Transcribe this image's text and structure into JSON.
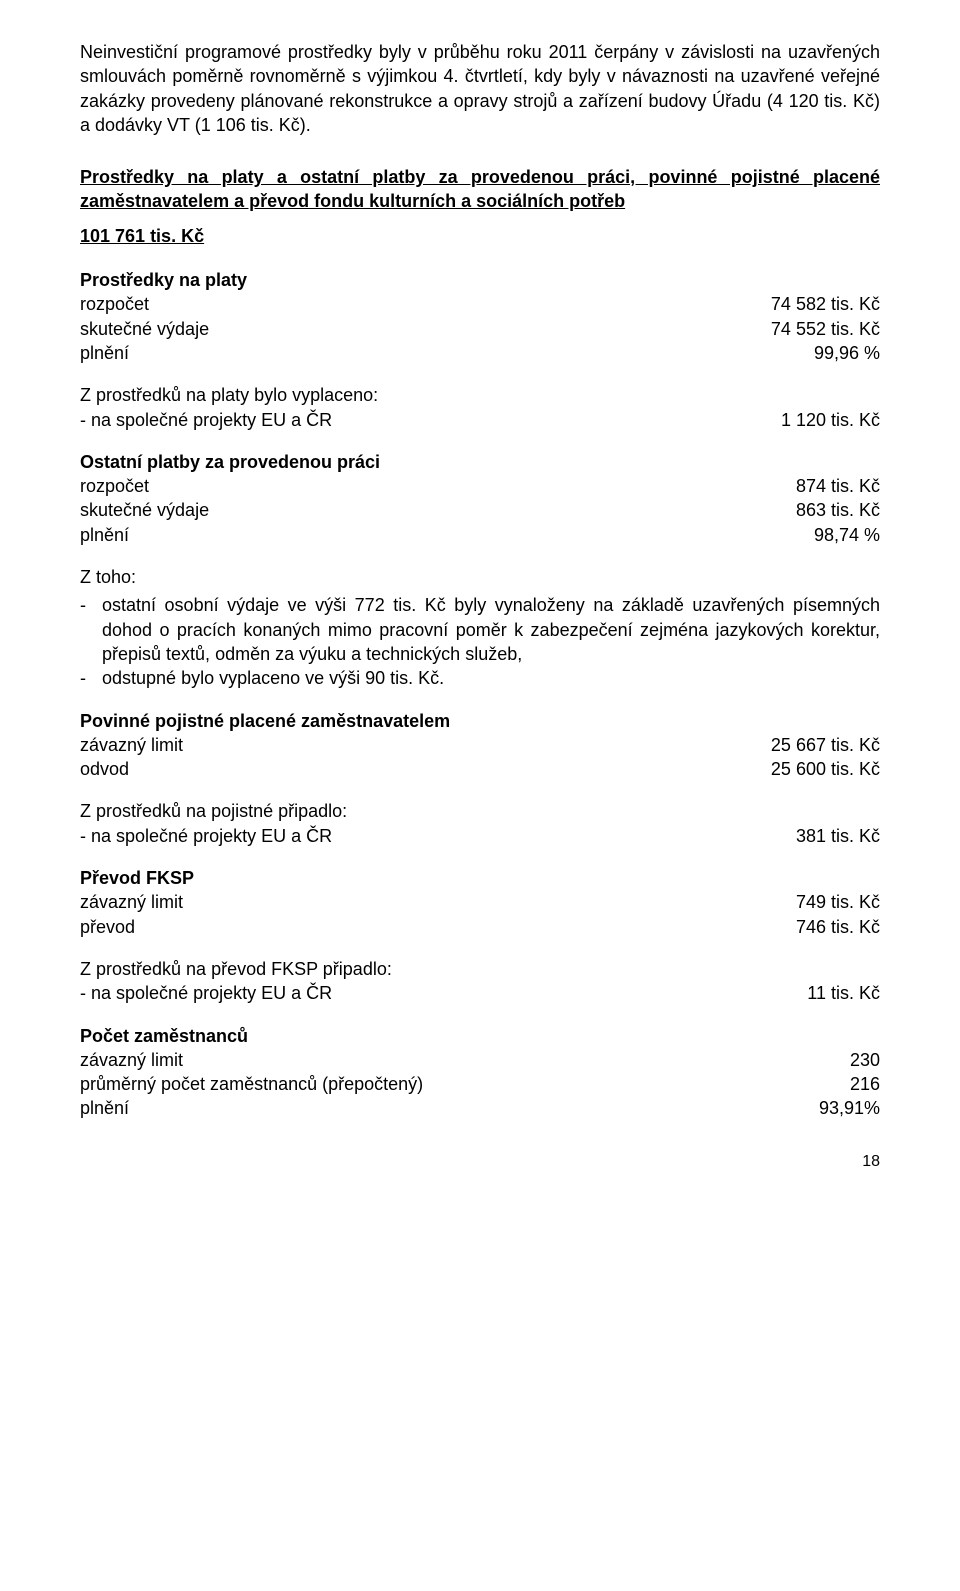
{
  "intro_para": "Neinvestiční programové prostředky byly v průběhu roku 2011 čerpány v závislosti na uzavřených smlouvách poměrně rovnoměrně s výjimkou 4. čtvrtletí, kdy byly v návaznosti na uzavřené veřejné zakázky provedeny plánované rekonstrukce a opravy strojů a zařízení budovy Úřadu (4 120 tis. Kč) a dodávky VT (1 106 tis. Kč).",
  "section_title": "Prostředky na platy a ostatní platby za provedenou práci, povinné pojistné placené zaměstnavatelem a převod fondu kulturních a sociálních potřeb",
  "section_amount": "101 761 tis. Kč",
  "platy": {
    "title": "Prostředky na platy",
    "rozpocet_label": "rozpočet",
    "rozpocet_value": "74 582 tis. Kč",
    "skutecne_label": "skutečné výdaje",
    "skutecne_value": "74 552 tis. Kč",
    "plneni_label": "plnění",
    "plneni_value": "99,96 %"
  },
  "platy_vyplaceno": {
    "intro": "Z prostředků na platy bylo vyplaceno:",
    "row_label": "na společné projekty EU a ČR",
    "row_value": "1 120 tis. Kč"
  },
  "ostatni": {
    "title": "Ostatní platby za provedenou práci",
    "rozpocet_label": "rozpočet",
    "rozpocet_value": "874 tis. Kč",
    "skutecne_label": "skutečné výdaje",
    "skutecne_value": "863 tis. Kč",
    "plneni_label": "plnění",
    "plneni_value": "98,74 %"
  },
  "ztoho": {
    "label": "Z toho:",
    "bullet1": "ostatní osobní výdaje ve výši 772 tis. Kč byly vynaloženy na základě uzavřených písemných dohod o pracích konaných mimo pracovní poměr k zabezpečení zejména jazykových korektur, přepisů textů, odměn za výuku a technických služeb,",
    "bullet2": "odstupné bylo vyplaceno ve výši 90 tis. Kč."
  },
  "pojistne": {
    "title": "Povinné pojistné placené zaměstnavatelem",
    "limit_label": "závazný limit",
    "limit_value": "25 667 tis. Kč",
    "odvod_label": "odvod",
    "odvod_value": "25 600 tis. Kč"
  },
  "pojistne_pripadlo": {
    "intro": "Z prostředků na pojistné připadlo:",
    "row_label": "- na společné projekty EU a ČR",
    "row_value": "381 tis. Kč"
  },
  "fksp": {
    "title": "Převod FKSP",
    "limit_label": "závazný limit",
    "limit_value": "749 tis. Kč",
    "prevod_label": "převod",
    "prevod_value": "746 tis. Kč"
  },
  "fksp_pripadlo": {
    "intro": "Z prostředků na převod FKSP připadlo:",
    "row_label": "na společné projekty EU a ČR",
    "row_value": "11 tis. Kč"
  },
  "zamestnanci": {
    "title": "Počet zaměstnanců",
    "limit_label": "závazný limit",
    "limit_value": "230",
    "prumer_label": "průměrný počet zaměstnanců (přepočtený)",
    "prumer_value": "216",
    "plneni_label": "plnění",
    "plneni_value": "93,91%"
  },
  "page_number": "18"
}
